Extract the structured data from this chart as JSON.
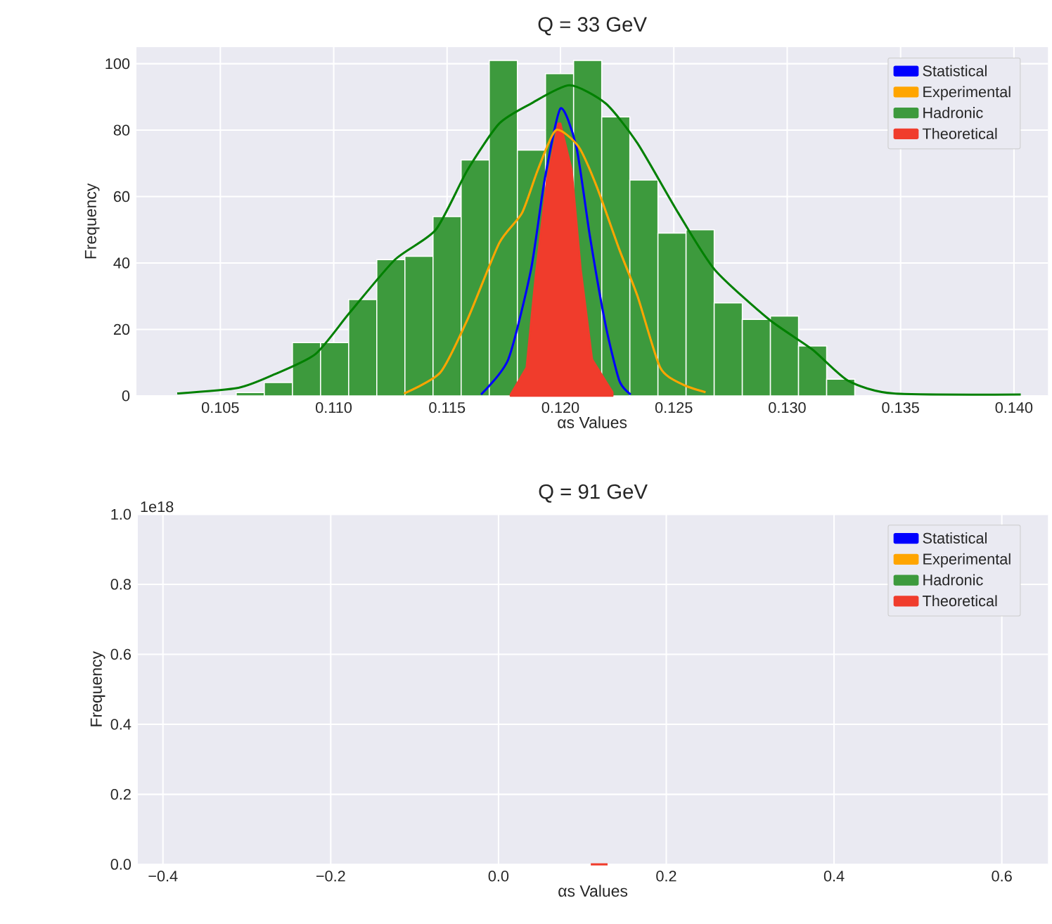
{
  "chart_data": [
    {
      "type": "histogram",
      "title": "Q = 33 GeV",
      "xlabel": "αs Values",
      "ylabel": "Frequency",
      "xlim": [
        0.1013,
        0.1415
      ],
      "ylim": [
        0,
        105
      ],
      "xticks": [
        0.105,
        {
          "value": 0.11,
          "label": "0.110"
        },
        0.115,
        {
          "value": 0.12,
          "label": "0.120"
        },
        0.125,
        {
          "value": 0.13,
          "label": "0.130"
        },
        0.135,
        {
          "value": 0.14,
          "label": "0.140"
        }
      ],
      "yticks": [
        0,
        20,
        40,
        60,
        80,
        100
      ],
      "grid": true,
      "legend": "top right",
      "series": [
        {
          "name": "Statistical",
          "type": "line",
          "color": "#0000ff",
          "x": [
            0.1165,
            0.1177,
            0.1187,
            0.1193,
            0.12,
            0.1207,
            0.1213,
            0.122,
            0.1226,
            0.1231
          ],
          "values": [
            0.4,
            11,
            38,
            65,
            86.5,
            75,
            48,
            21,
            4.5,
            0.4
          ]
        },
        {
          "name": "Experimental",
          "type": "line",
          "color": "#ffa500",
          "x": [
            0.1131,
            0.1147,
            0.1159,
            0.1173,
            0.1183,
            0.119,
            0.1198,
            0.1208,
            0.1216,
            0.1226,
            0.1234,
            0.1244,
            0.1254,
            0.1264
          ],
          "values": [
            0.7,
            7,
            23,
            46,
            55,
            68,
            80,
            75,
            63,
            44,
            30,
            8.5,
            3.4,
            1.1
          ]
        },
        {
          "name": "Hadronic",
          "type": "histogram",
          "color": "#3d9a3d",
          "bins": [
            0.1057,
            0.10694,
            0.10818,
            0.10942,
            0.11066,
            0.1119,
            0.11314,
            0.11438,
            0.11562,
            0.11686,
            0.1181,
            0.11934,
            0.12058,
            0.12182,
            0.12306,
            0.1243,
            0.12554,
            0.12678,
            0.12802,
            0.12926,
            0.1305,
            0.13174,
            0.13298
          ],
          "values": [
            1,
            4,
            16,
            16,
            29,
            41,
            42,
            54,
            71,
            101,
            74,
            97,
            101,
            84,
            65,
            49,
            50,
            28,
            23,
            24,
            15,
            5
          ]
        },
        {
          "name": "Theoretical",
          "type": "area",
          "color": "#f03c2c",
          "x": [
            0.1178,
            0.1185,
            0.1189,
            0.1194,
            0.1199,
            0.12,
            0.1205,
            0.1209,
            0.1214,
            0.1223
          ],
          "values": [
            0.4,
            8.5,
            36,
            65,
            82,
            82,
            68,
            38,
            11,
            1.1
          ]
        },
        {
          "type": "line",
          "color": "#008000",
          "x": [
            0.1031,
            0.1058,
            0.1074,
            0.1092,
            0.1107,
            0.1127,
            0.1145,
            0.1159,
            0.1173,
            0.1187,
            0.1204,
            0.122,
            0.1234,
            0.1252,
            0.1268,
            0.1292,
            0.1311,
            0.1327,
            0.1347,
            0.1403
          ],
          "values": [
            0.7,
            2.4,
            6.5,
            12.6,
            25,
            41,
            50,
            68,
            82,
            88,
            93.5,
            88,
            76,
            55,
            38,
            23,
            14,
            4.5,
            0.7,
            0.4
          ]
        }
      ]
    },
    {
      "type": "line",
      "title": "Q = 91 GeV",
      "xlabel": "αs Values",
      "ylabel": "Frequency",
      "xlim": [
        -0.43,
        0.655
      ],
      "ylim": [
        0,
        1
      ],
      "xticks": [
        {
          "value": -0.4,
          "label": "−0.4"
        },
        {
          "value": -0.2,
          "label": "−0.2"
        },
        {
          "value": 0,
          "label": "0.0"
        },
        0.2,
        0.4,
        0.6
      ],
      "yticks": [
        {
          "value": 0,
          "label": "0.0"
        },
        0.2,
        0.4,
        0.6,
        0.8,
        {
          "value": 1,
          "label": "1.0"
        }
      ],
      "grid": true,
      "legend": "top right",
      "annotations": [
        "1e18"
      ],
      "series": [
        {
          "name": "Statistical",
          "color": "#0000ff"
        },
        {
          "name": "Experimental",
          "color": "#ffa500"
        },
        {
          "name": "Hadronic",
          "color": "#3d9a3d"
        },
        {
          "name": "Theoretical",
          "color": "#f03c2c",
          "x": [
            0.11,
            0.12,
            0.13
          ],
          "values": [
            0,
            0,
            0
          ]
        }
      ]
    }
  ]
}
